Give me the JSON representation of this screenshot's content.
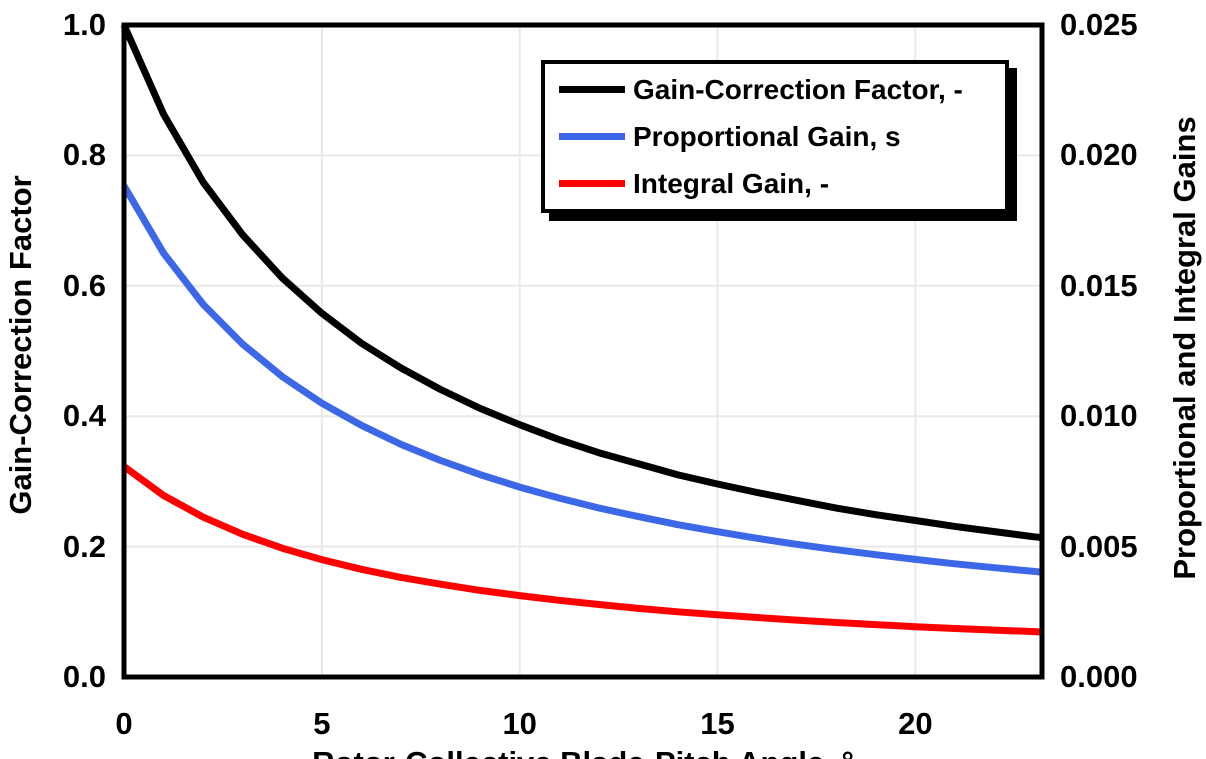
{
  "chart_data": {
    "type": "line",
    "title": "",
    "xlabel": "Rotor-Collective Blade-Pitch Angle, °",
    "ylabel_left": "Gain-Correction Factor",
    "ylabel_right": "Proportional and Integral Gains",
    "xlim": [
      0,
      23.2
    ],
    "ylim_left": [
      0,
      1.0
    ],
    "ylim_right": [
      0,
      0.025
    ],
    "grid": true,
    "legend_position": "inside-top-right",
    "xticks": {
      "values": [
        0,
        5,
        10,
        15,
        20
      ],
      "labels": [
        "0",
        "5",
        "10",
        "15",
        "20"
      ]
    },
    "yticks_left": {
      "values": [
        0,
        0.2,
        0.4,
        0.6,
        0.8,
        1.0
      ],
      "labels": [
        "0.0",
        "0.2",
        "0.4",
        "0.6",
        "0.8",
        "1.0"
      ]
    },
    "yticks_right": {
      "values": [
        0,
        0.005,
        0.01,
        0.015,
        0.02,
        0.025
      ],
      "labels": [
        "0.000",
        "0.005",
        "0.010",
        "0.015",
        "0.020",
        "0.025"
      ]
    },
    "x": [
      0,
      1,
      2,
      3,
      4,
      5,
      6,
      7,
      8,
      9,
      10,
      11,
      12,
      13,
      14,
      15,
      16,
      17,
      18,
      19,
      20,
      21,
      22,
      23,
      23.2
    ],
    "series": [
      {
        "name": "Gain-Correction Factor, -",
        "axis": "left",
        "color": "#000000",
        "values": [
          1.0,
          0.863,
          0.759,
          0.678,
          0.612,
          0.558,
          0.512,
          0.474,
          0.441,
          0.412,
          0.387,
          0.364,
          0.344,
          0.327,
          0.31,
          0.296,
          0.283,
          0.271,
          0.259,
          0.249,
          0.24,
          0.231,
          0.223,
          0.215,
          0.214
        ]
      },
      {
        "name": "Proportional Gain, s",
        "axis": "right",
        "color": "#3C68E8",
        "values": [
          0.01883,
          0.01625,
          0.01429,
          0.01276,
          0.01152,
          0.0105,
          0.00965,
          0.00892,
          0.0083,
          0.00776,
          0.00728,
          0.00686,
          0.00648,
          0.00615,
          0.00584,
          0.00557,
          0.00532,
          0.00509,
          0.00488,
          0.00469,
          0.00451,
          0.00434,
          0.00419,
          0.00405,
          0.00402
        ]
      },
      {
        "name": "Integral Gain, -",
        "axis": "right",
        "color": "#FF0000",
        "values": [
          0.00807,
          0.00696,
          0.00613,
          0.00547,
          0.00494,
          0.0045,
          0.00413,
          0.00382,
          0.00356,
          0.00332,
          0.00312,
          0.00294,
          0.00278,
          0.00263,
          0.0025,
          0.00239,
          0.00228,
          0.00218,
          0.00209,
          0.00201,
          0.00193,
          0.00186,
          0.0018,
          0.00174,
          0.00172
        ]
      }
    ]
  },
  "colors": {
    "background": "#FFFFFF",
    "axis_box": "#000000",
    "gridline": "#E9E9E9",
    "series_black": "#000000",
    "series_blue": "#3C68E8",
    "series_red": "#FF0000"
  }
}
